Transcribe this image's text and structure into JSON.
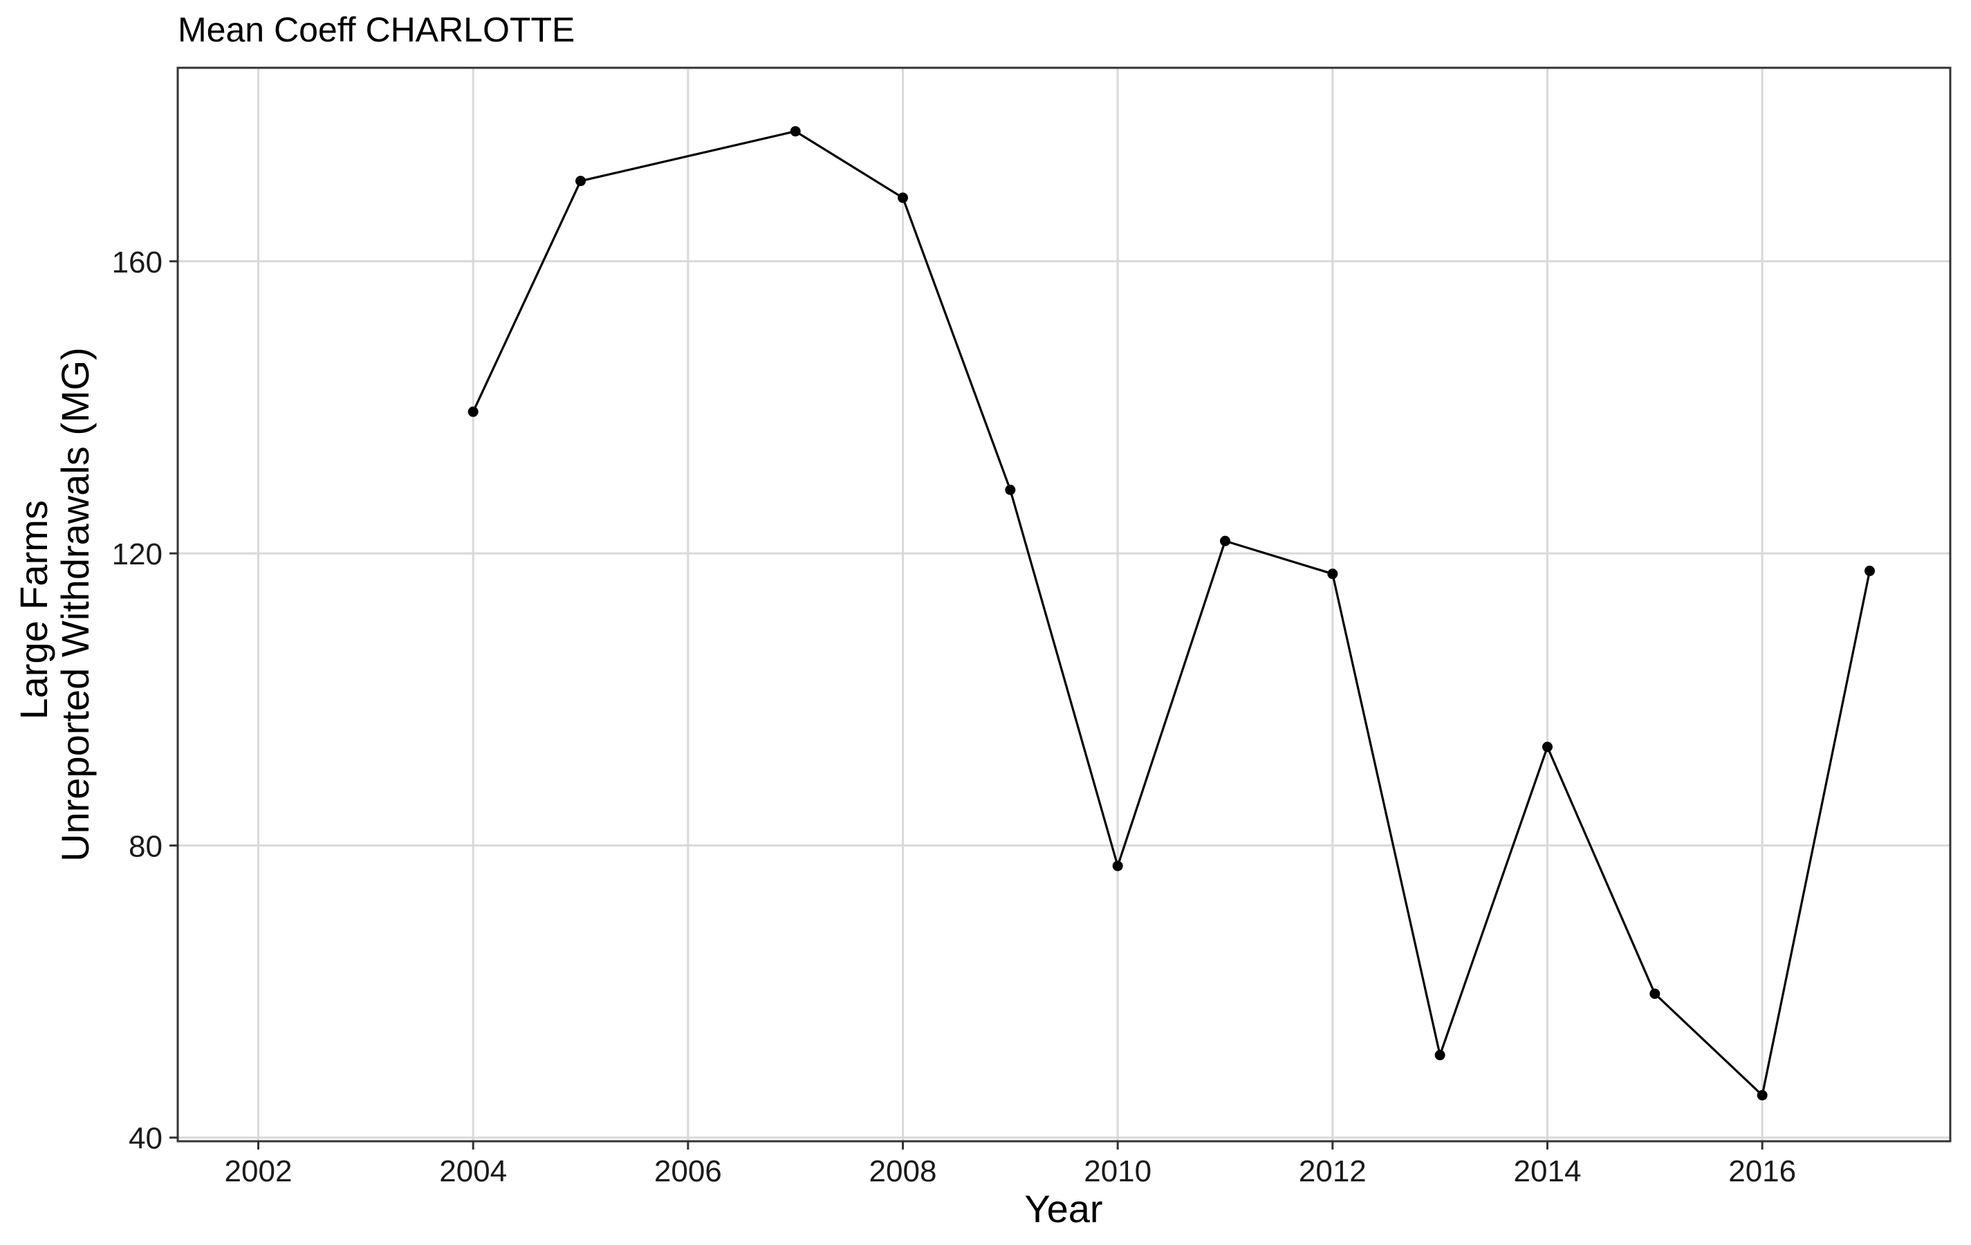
{
  "chart_data": {
    "type": "line",
    "title": "Mean Coeff CHARLOTTE",
    "xlabel": "Year",
    "ylabel_lines": [
      "Large Farms",
      "Unreported Withdrawals (MG)"
    ],
    "xlim": [
      2001.25,
      2017.75
    ],
    "ylim": [
      39.5,
      186.5
    ],
    "x_ticks": [
      2002,
      2004,
      2006,
      2008,
      2010,
      2012,
      2014,
      2016
    ],
    "x_tick_labels": [
      "2002",
      "2004",
      "2006",
      "2008",
      "2010",
      "2012",
      "2014",
      "2016"
    ],
    "y_ticks": [
      40,
      80,
      120,
      160
    ],
    "y_tick_labels": [
      "40",
      "80",
      "120",
      "160"
    ],
    "grid": true,
    "series": [
      {
        "x": [
          2004,
          2005,
          2007,
          2008,
          2009,
          2010,
          2011,
          2012,
          2013,
          2014,
          2015,
          2016,
          2017
        ],
        "y": [
          139.4,
          171,
          177.8,
          168.7,
          128.7,
          77.2,
          121.7,
          117.2,
          51.3,
          93.5,
          59.7,
          45.8,
          117.6
        ]
      }
    ],
    "colors": {
      "line": "#000000",
      "point": "#000000",
      "grid": "#d9d9d9",
      "panel_border": "#333333",
      "background": "#ffffff"
    }
  }
}
